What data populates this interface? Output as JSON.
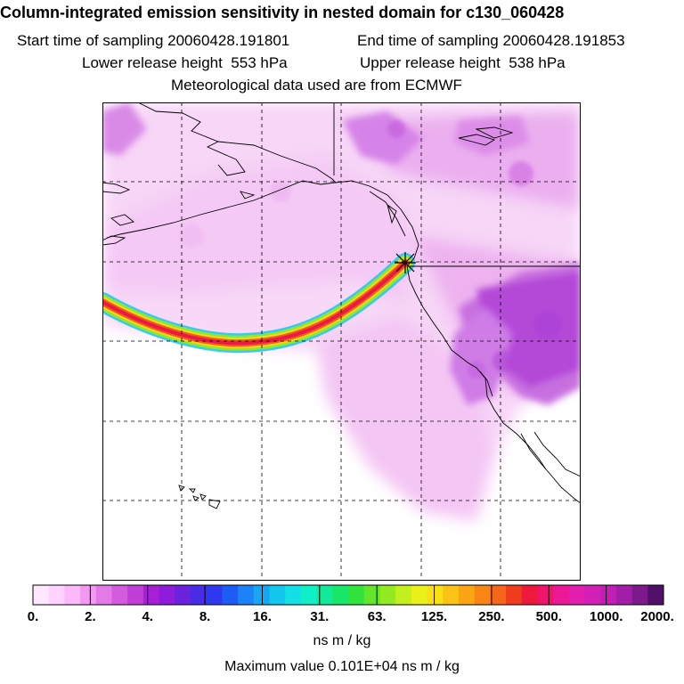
{
  "header": {
    "title": "Column-integrated emission sensitivity in nested domain for c130_060428",
    "start_label": "Start time of sampling",
    "start_value": "20060428.191801",
    "end_label": "End time of sampling",
    "end_value": "20060428.191853",
    "lower_label": "Lower release height",
    "lower_value": "553 hPa",
    "upper_label": "Upper release height",
    "upper_value": "538 hPa",
    "met_text": "Meteorological data used are from ECMWF"
  },
  "legend": {
    "tick_labels": [
      "0.",
      "2.",
      "4.",
      "8.",
      "16.",
      "31.",
      "63.",
      "125.",
      "250.",
      "500.",
      "1000.",
      "2000."
    ],
    "units": "ns m / kg",
    "max_text": "Maximum value  0.101E+04 ns m / kg",
    "colors": [
      "#ffe8ff",
      "#ffd2ff",
      "#fbb8fb",
      "#f29af2",
      "#e479e8",
      "#d45ade",
      "#c23ed9",
      "#a820d6",
      "#8f1cdb",
      "#6a22dd",
      "#4a2ce6",
      "#2f3af0",
      "#1e5cf6",
      "#1b82f7",
      "#16a6f4",
      "#13c6ee",
      "#12e0e4",
      "#10f0c8",
      "#12ea98",
      "#18e668",
      "#31e23c",
      "#62e52a",
      "#92ea22",
      "#c3ef1e",
      "#eaf01a",
      "#f9df18",
      "#fbc316",
      "#fba514",
      "#f88614",
      "#f46618",
      "#f03c1c",
      "#ee1a3c",
      "#f0146a",
      "#ec1896",
      "#e21eae",
      "#d41fb6",
      "#c21eb6",
      "#a31ea8",
      "#7c1a8c",
      "#50106a"
    ]
  },
  "map": {
    "release_marker": "release-site"
  }
}
